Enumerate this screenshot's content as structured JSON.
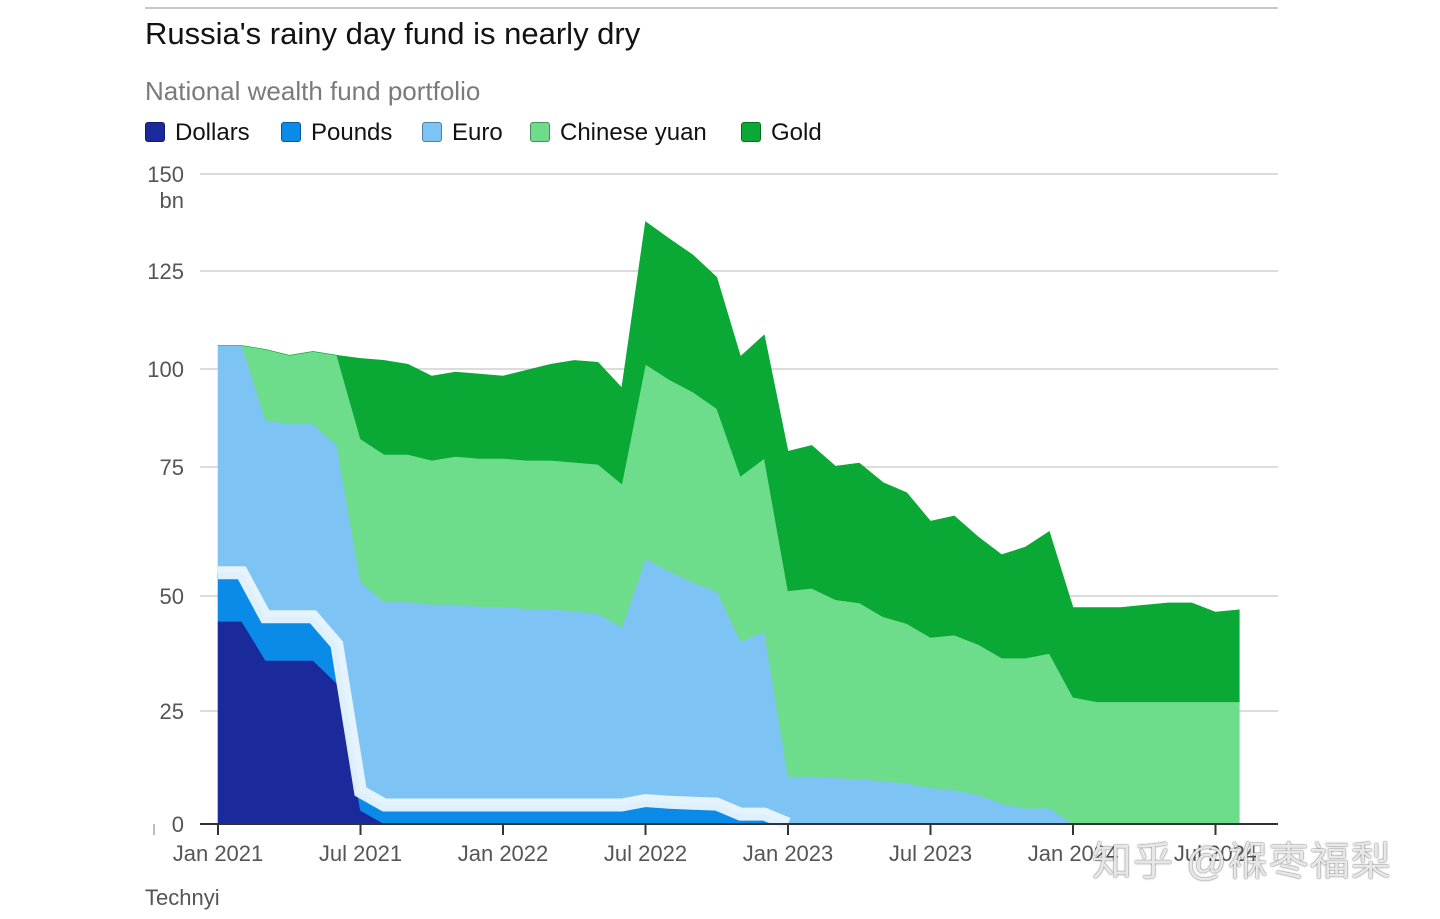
{
  "colors": {
    "dollars": "#1b2a9a",
    "pounds": "#0a8be8",
    "euro": "#7dc4f5",
    "chinese_yuan": "#6ddc8b",
    "gold": "#0aa834",
    "separator": "#eaf5fc",
    "grid": "#dcdcdc",
    "axis": "#333333",
    "tick_text": "#555555"
  },
  "chart_data": {
    "type": "area",
    "stacked": true,
    "title": "Russia's rainy day fund is nearly dry",
    "subtitle": "National wealth fund portfolio",
    "ylabel": "bn",
    "ylim": [
      0,
      150
    ],
    "grid": true,
    "legend_position": "top-left",
    "y_ticks": [
      {
        "value": 150,
        "label": "150",
        "unit": "bn"
      },
      {
        "value": 125,
        "label": "125"
      },
      {
        "value": 100,
        "label": "100"
      },
      {
        "value": 75,
        "label": "75"
      },
      {
        "value": 50,
        "label": "50"
      },
      {
        "value": 25,
        "label": "25"
      },
      {
        "value": 0,
        "label": "0"
      }
    ],
    "x_ticks": [
      {
        "month": 0,
        "label": "Jan 2021"
      },
      {
        "month": 6,
        "label": "Jul 2021"
      },
      {
        "month": 12,
        "label": "Jan 2022"
      },
      {
        "month": 18,
        "label": "Jul 2022"
      },
      {
        "month": 24,
        "label": "Jan 2023"
      },
      {
        "month": 30,
        "label": "Jul 2023"
      },
      {
        "month": 36,
        "label": "Jan 2024"
      },
      {
        "month": 42,
        "label": "Jul 2024"
      }
    ],
    "x_months": [
      0,
      1,
      2,
      3,
      4,
      5,
      6,
      7,
      8,
      9,
      10,
      11,
      12,
      13,
      14,
      15,
      16,
      17,
      18,
      19,
      20,
      21,
      22,
      23,
      24,
      25,
      26,
      27,
      28,
      29,
      30,
      31,
      32,
      33,
      34,
      35,
      36,
      37,
      38,
      39,
      40,
      41,
      42,
      43
    ],
    "series": [
      {
        "key": "dollars",
        "name": "Dollars",
        "values": [
          44.5,
          44.5,
          36,
          36,
          36,
          31,
          3,
          0,
          0,
          0,
          0,
          0,
          0,
          0,
          0,
          0,
          0,
          0,
          0,
          0,
          0,
          0,
          0,
          0,
          0,
          0,
          0,
          0,
          0,
          0,
          0,
          0,
          0,
          0,
          0,
          0,
          0,
          0,
          0,
          0,
          0,
          0,
          0,
          0
        ]
      },
      {
        "key": "pounds",
        "name": "Pounds",
        "values": [
          10,
          10,
          9.5,
          9.5,
          9.5,
          8.5,
          4.2,
          4.2,
          4.2,
          4.2,
          4.2,
          4.2,
          4.2,
          4.2,
          4.2,
          4.2,
          4.2,
          4.2,
          5.2,
          4.8,
          4.6,
          4.4,
          2.2,
          2.2,
          0,
          0,
          0,
          0,
          0,
          0,
          0,
          0,
          0,
          0,
          0,
          0,
          0,
          0,
          0,
          0,
          0,
          0,
          0,
          0
        ]
      },
      {
        "key": "euro",
        "name": "Euro",
        "values": [
          51.5,
          51.5,
          41.5,
          40.5,
          40.5,
          41,
          45.5,
          44.5,
          44.5,
          44,
          44,
          43.5,
          43.5,
          43,
          43,
          42.5,
          42,
          39,
          52,
          50,
          48,
          46.5,
          38,
          40,
          10.5,
          10.5,
          10.2,
          10,
          9.5,
          9,
          8,
          7.5,
          6.5,
          4.5,
          3.5,
          3.5,
          0,
          0,
          0,
          0,
          0,
          0,
          0,
          0
        ]
      },
      {
        "key": "chinese_yuan",
        "name": "Chinese yuan",
        "values": [
          0,
          0,
          18,
          17.5,
          18.5,
          23,
          29.5,
          29.5,
          29.5,
          28.5,
          29.5,
          29.5,
          29.5,
          29.5,
          29.5,
          29.5,
          29.5,
          28.5,
          44,
          42.5,
          41.5,
          39,
          33,
          35,
          40.5,
          41,
          39,
          38.5,
          36,
          35,
          33,
          34,
          33,
          32,
          33,
          34,
          28,
          27,
          27,
          27,
          27,
          27,
          27,
          27
        ]
      },
      {
        "key": "gold",
        "name": "Gold",
        "values": [
          0,
          0,
          0,
          0,
          0,
          0,
          20.5,
          24,
          23,
          21.5,
          21.5,
          21.5,
          21,
          23,
          24.5,
          26,
          26,
          23.5,
          36.5,
          36,
          35,
          33.5,
          30,
          31.5,
          28,
          29,
          26,
          27.5,
          26.5,
          26,
          23.5,
          24,
          22,
          21.5,
          23,
          25,
          19.5,
          20.5,
          20.5,
          21,
          21.5,
          21.5,
          19.5,
          20
        ]
      }
    ],
    "source": "Technyi"
  },
  "watermark": "知乎 @褓枣福梨"
}
